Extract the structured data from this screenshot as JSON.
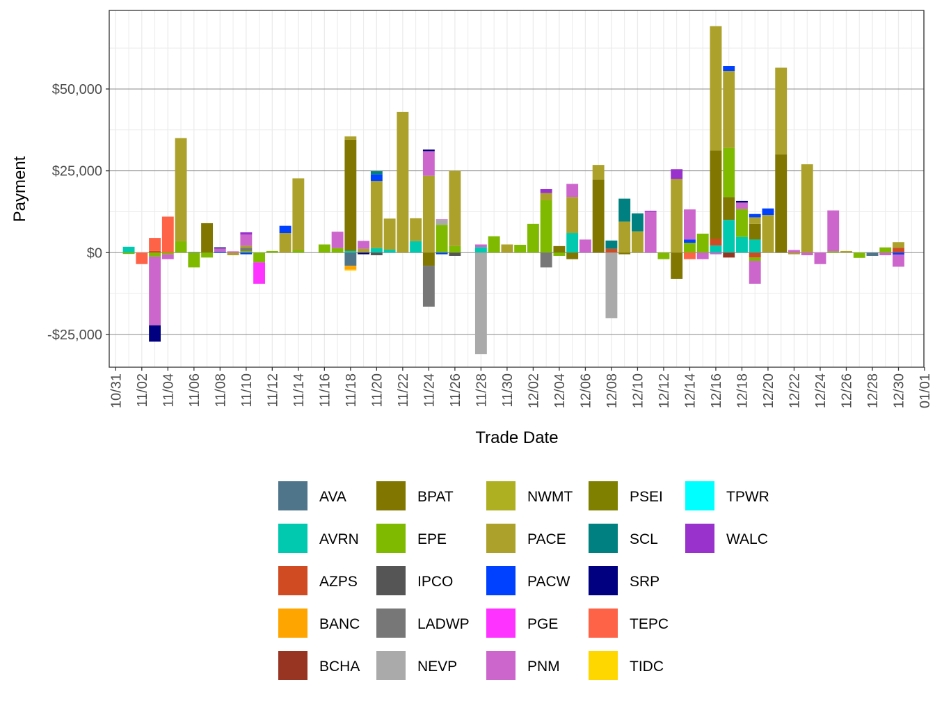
{
  "chart_data": {
    "type": "bar",
    "stacked": true,
    "xlabel": "Trade Date",
    "ylabel": "Payment",
    "x_range": [
      "10/31",
      "01/01"
    ],
    "x_tick_labels": [
      "10/31",
      "11/02",
      "11/04",
      "11/06",
      "11/08",
      "11/10",
      "11/12",
      "11/14",
      "11/16",
      "11/18",
      "11/20",
      "11/22",
      "11/24",
      "11/26",
      "11/28",
      "11/30",
      "12/02",
      "12/04",
      "12/06",
      "12/08",
      "12/10",
      "12/12",
      "12/14",
      "12/16",
      "12/18",
      "12/20",
      "12/22",
      "12/24",
      "12/26",
      "12/28",
      "12/30",
      "01/01"
    ],
    "ylim": [
      -35000,
      74000
    ],
    "y_ticks": [
      -25000,
      0,
      25000,
      50000
    ],
    "y_tick_labels": [
      "-$25,000",
      "$0",
      "$25,000",
      "$50,000"
    ],
    "grid": true,
    "legend_position": "bottom",
    "colors": {
      "AVA": "#4E7589",
      "AVRN": "#00C9B0",
      "AZPS": "#D04B22",
      "BANC": "#FFA500",
      "BCHA": "#983522",
      "BPAT": "#807600",
      "EPE": "#80BA00",
      "IPCO": "#555555",
      "LADWP": "#777777",
      "NEVP": "#AAAAAA",
      "NWMT": "#AEB022",
      "PACE": "#ACA12A",
      "PACW": "#0040FF",
      "PGE": "#FF33FF",
      "PNM": "#CC66CC",
      "PSEI": "#808000",
      "SCL": "#008080",
      "SRP": "#000080",
      "TEPC": "#FF6347",
      "TIDC": "#FFD700",
      "TPWR": "#00FFFF",
      "WALC": "#9932CC"
    },
    "legend_entries": [
      "AVA",
      "AVRN",
      "AZPS",
      "BANC",
      "BCHA",
      "BPAT",
      "EPE",
      "IPCO",
      "LADWP",
      "NEVP",
      "NWMT",
      "PACE",
      "PACW",
      "PGE",
      "PNM",
      "PSEI",
      "SCL",
      "SRP",
      "TEPC",
      "TIDC",
      "TPWR",
      "WALC"
    ],
    "dates": [
      {
        "date": "11/01",
        "values": {
          "AVRN": 1800,
          "EPE": -400
        }
      },
      {
        "date": "11/02",
        "values": {
          "TEPC": -3500
        }
      },
      {
        "date": "11/03",
        "values": {
          "TEPC": 4000,
          "AZPS": 500,
          "SRP": -5000,
          "PNM": -21000,
          "EPE": -1200
        }
      },
      {
        "date": "11/04",
        "values": {
          "TEPC": 11000,
          "PNM": -1500,
          "EPE": -500
        }
      },
      {
        "date": "11/05",
        "values": {
          "PACE": 31500,
          "EPE": 3500
        }
      },
      {
        "date": "11/06",
        "values": {
          "AVA": 200,
          "EPE": -4500
        }
      },
      {
        "date": "11/07",
        "values": {
          "BPAT": 9000,
          "EPE": -1500
        }
      },
      {
        "date": "11/08",
        "values": {
          "PNM": 1000,
          "SRP": 300,
          "PACW": 300
        }
      },
      {
        "date": "11/09",
        "values": {
          "PNM": 400,
          "PACE": -800
        }
      },
      {
        "date": "11/10",
        "values": {
          "PNM": 3400,
          "WALC": 700,
          "LADWP": 1000,
          "EPE": 500,
          "PACE": 600,
          "PACW": -500
        }
      },
      {
        "date": "11/11",
        "values": {
          "PGE": -6500,
          "EPE": -3000
        }
      },
      {
        "date": "11/12",
        "values": {
          "EPE": 500
        }
      },
      {
        "date": "11/13",
        "values": {
          "PACW": 2200,
          "PACE": 6000
        }
      },
      {
        "date": "11/14",
        "values": {
          "PACE": 22000,
          "EPE": 700
        }
      },
      {
        "date": "11/16",
        "values": {
          "EPE": 2500
        }
      },
      {
        "date": "11/17",
        "values": {
          "PNM": 5000,
          "EPE": 1400
        }
      },
      {
        "date": "11/18",
        "values": {
          "BPAT": 34000,
          "PACE": 1000,
          "AVRN": 500,
          "AVA": -4000,
          "BANC": -1200,
          "TIDC": -300
        }
      },
      {
        "date": "11/19",
        "values": {
          "PNM": 2400,
          "PACE": 1200,
          "SRP": -500
        }
      },
      {
        "date": "11/20",
        "values": {
          "PACW": 2000,
          "SCL": 1000,
          "PACE": 20500,
          "AVRN": 1400,
          "IPCO": -800
        }
      },
      {
        "date": "11/21",
        "values": {
          "PACE": 9500,
          "AVRN": 900
        }
      },
      {
        "date": "11/22",
        "values": {
          "PACE": 43000
        }
      },
      {
        "date": "11/23",
        "values": {
          "PACE": 7000,
          "AVRN": 3500
        }
      },
      {
        "date": "11/24",
        "values": {
          "PNM": 7500,
          "SRP": 500,
          "PACE": 23500,
          "LADWP": -12500,
          "BPAT": -4000
        }
      },
      {
        "date": "11/25",
        "values": {
          "NEVP": 1500,
          "EPE": 8500,
          "PNM": 200,
          "PACW": -500
        }
      },
      {
        "date": "11/26",
        "values": {
          "EPE": 2000,
          "PACE": 23000,
          "IPCO": -1000
        }
      },
      {
        "date": "11/28",
        "values": {
          "PNM": 800,
          "AVRN": 1700,
          "NEVP": -31000
        }
      },
      {
        "date": "11/29",
        "values": {
          "EPE": 5000
        }
      },
      {
        "date": "11/30",
        "values": {
          "PACE": 2500
        }
      },
      {
        "date": "12/01",
        "values": {
          "EPE": 2400
        }
      },
      {
        "date": "12/02",
        "values": {
          "EPE": 8800
        }
      },
      {
        "date": "12/03",
        "values": {
          "WALC": 1200,
          "PACE": 2200,
          "EPE": 16000,
          "LADWP": -4500
        }
      },
      {
        "date": "12/04",
        "values": {
          "BPAT": 2000,
          "EPE": -1000
        }
      },
      {
        "date": "12/05",
        "values": {
          "PNM": 4000,
          "PACE": 11000,
          "AVRN": 6000,
          "BPAT": -2000
        }
      },
      {
        "date": "12/06",
        "values": {
          "PNM": 4000
        }
      },
      {
        "date": "12/07",
        "values": {
          "PACE": 4500,
          "BPAT": 22300
        }
      },
      {
        "date": "12/08",
        "values": {
          "SCL": 2500,
          "AZPS": 1200,
          "NEVP": -20000
        }
      },
      {
        "date": "12/09",
        "values": {
          "SCL": 7000,
          "PACE": 9500,
          "BPAT": -500
        }
      },
      {
        "date": "12/10",
        "values": {
          "SCL": 5500,
          "PACE": 6500
        }
      },
      {
        "date": "12/11",
        "values": {
          "PNM": 12500,
          "WALC": 300
        }
      },
      {
        "date": "12/12",
        "values": {
          "EPE": -2000
        }
      },
      {
        "date": "12/13",
        "values": {
          "WALC": 3000,
          "PACE": 22500,
          "BPAT": -8000
        }
      },
      {
        "date": "12/14",
        "values": {
          "PACW": 1000,
          "PNM": 9200,
          "EPE": 3000,
          "TEPC": -2000
        }
      },
      {
        "date": "12/15",
        "values": {
          "EPE": 5800,
          "PNM": -2000
        }
      },
      {
        "date": "12/16",
        "values": {
          "PACE": 38000,
          "BPAT": 27000,
          "AZPS": 2000,
          "AVRN": 2200,
          "PNM": -500
        }
      },
      {
        "date": "12/17",
        "values": {
          "PACW": 1500,
          "PACE": 23500,
          "EPE": 15000,
          "BPAT": 7000,
          "AVRN": 10000,
          "BCHA": -1500
        }
      },
      {
        "date": "12/18",
        "values": {
          "PNM": 2000,
          "SRP": 500,
          "EPE": 8500,
          "AVRN": 4800,
          "PNM_neg": 0
        }
      },
      {
        "date": "12/19",
        "values": {
          "PACW": 1000,
          "PACE": 2000,
          "BPAT": 4800,
          "AVRN": 4000,
          "PNM": -7000,
          "EPE": -1000,
          "AZPS": -1500
        }
      },
      {
        "date": "12/20",
        "values": {
          "PACW": 2000,
          "PACE": 11500
        }
      },
      {
        "date": "12/21",
        "values": {
          "PACE": 26500,
          "BPAT": 30000
        }
      },
      {
        "date": "12/22",
        "values": {
          "PNM": 800,
          "PACE": -500
        }
      },
      {
        "date": "12/23",
        "values": {
          "PACE": 27000,
          "PNM": -800
        }
      },
      {
        "date": "12/24",
        "values": {
          "PNM": -3500
        }
      },
      {
        "date": "12/25",
        "values": {
          "PNM": 12500,
          "EPE": 400
        }
      },
      {
        "date": "12/26",
        "values": {
          "PACE": 500
        }
      },
      {
        "date": "12/27",
        "values": {
          "EPE": -1600
        }
      },
      {
        "date": "12/28",
        "values": {
          "AVA": -1000
        }
      },
      {
        "date": "12/29",
        "values": {
          "EPE": 1600,
          "PNM": -800
        }
      },
      {
        "date": "12/30",
        "values": {
          "PACE": 1700,
          "AZPS": 1500,
          "PNM": -3700,
          "PACW": -600
        }
      }
    ]
  }
}
